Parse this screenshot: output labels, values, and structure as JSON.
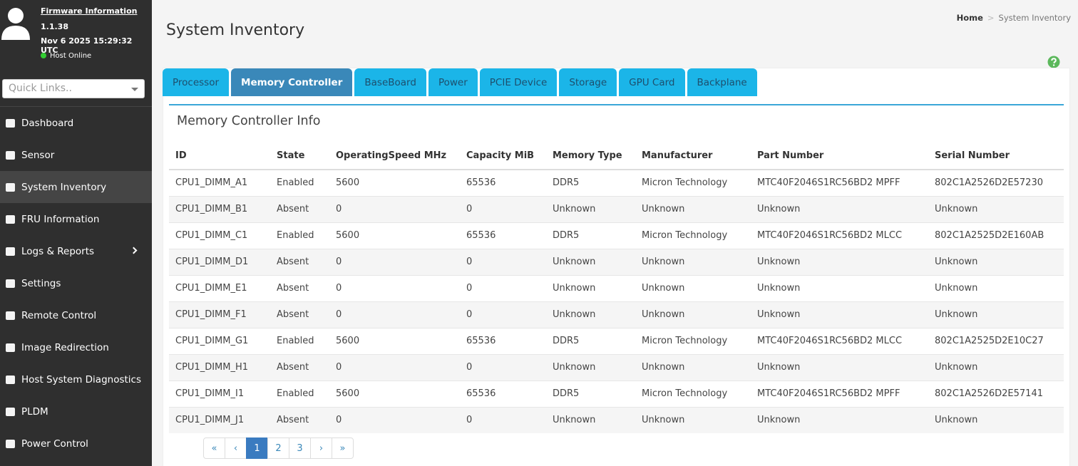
{
  "sidebar": {
    "firmware_link": "Firmware Information",
    "version": "1.1.38",
    "datetime": "Nov 6 2025 15:29:32 UTC",
    "status": "Host Online",
    "quick_links_placeholder": "Quick Links..",
    "nav": [
      "Dashboard",
      "Sensor",
      "System Inventory",
      "FRU Information",
      "Logs & Reports",
      "Settings",
      "Remote Control",
      "Image Redirection",
      "Host System Diagnostics",
      "PLDM",
      "Power Control"
    ],
    "active_nav": 2
  },
  "header": {
    "title": "System Inventory",
    "breadcrumb": [
      "Home",
      "System Inventory"
    ],
    "separator": ">"
  },
  "tabs": {
    "items": [
      "Processor",
      "Memory Controller",
      "BaseBoard",
      "Power",
      "PCIE Device",
      "Storage",
      "GPU Card",
      "Backplane"
    ],
    "active": 1
  },
  "panel": {
    "title": "Memory Controller Info"
  },
  "table": {
    "columns": [
      "ID",
      "State",
      "OperatingSpeed MHz",
      "Capacity MiB",
      "Memory Type",
      "Manufacturer",
      "Part Number",
      "Serial Number"
    ],
    "rows": [
      [
        "CPU1_DIMM_A1",
        "Enabled",
        "5600",
        "65536",
        "DDR5",
        "Micron Technology",
        "MTC40F2046S1RC56BD2 MPFF",
        "802C1A2526D2E57230"
      ],
      [
        "CPU1_DIMM_B1",
        "Absent",
        "0",
        "0",
        "Unknown",
        "Unknown",
        "Unknown",
        "Unknown"
      ],
      [
        "CPU1_DIMM_C1",
        "Enabled",
        "5600",
        "65536",
        "DDR5",
        "Micron Technology",
        "MTC40F2046S1RC56BD2 MLCC",
        "802C1A2525D2E160AB"
      ],
      [
        "CPU1_DIMM_D1",
        "Absent",
        "0",
        "0",
        "Unknown",
        "Unknown",
        "Unknown",
        "Unknown"
      ],
      [
        "CPU1_DIMM_E1",
        "Absent",
        "0",
        "0",
        "Unknown",
        "Unknown",
        "Unknown",
        "Unknown"
      ],
      [
        "CPU1_DIMM_F1",
        "Absent",
        "0",
        "0",
        "Unknown",
        "Unknown",
        "Unknown",
        "Unknown"
      ],
      [
        "CPU1_DIMM_G1",
        "Enabled",
        "5600",
        "65536",
        "DDR5",
        "Micron Technology",
        "MTC40F2046S1RC56BD2 MLCC",
        "802C1A2525D2E10C27"
      ],
      [
        "CPU1_DIMM_H1",
        "Absent",
        "0",
        "0",
        "Unknown",
        "Unknown",
        "Unknown",
        "Unknown"
      ],
      [
        "CPU1_DIMM_I1",
        "Enabled",
        "5600",
        "65536",
        "DDR5",
        "Micron Technology",
        "MTC40F2046S1RC56BD2 MPFF",
        "802C1A2526D2E57141"
      ],
      [
        "CPU1_DIMM_J1",
        "Absent",
        "0",
        "0",
        "Unknown",
        "Unknown",
        "Unknown",
        "Unknown"
      ]
    ]
  },
  "pagination": {
    "items": [
      "«",
      "‹",
      "1",
      "2",
      "3",
      "›",
      "»"
    ],
    "active": 2
  }
}
